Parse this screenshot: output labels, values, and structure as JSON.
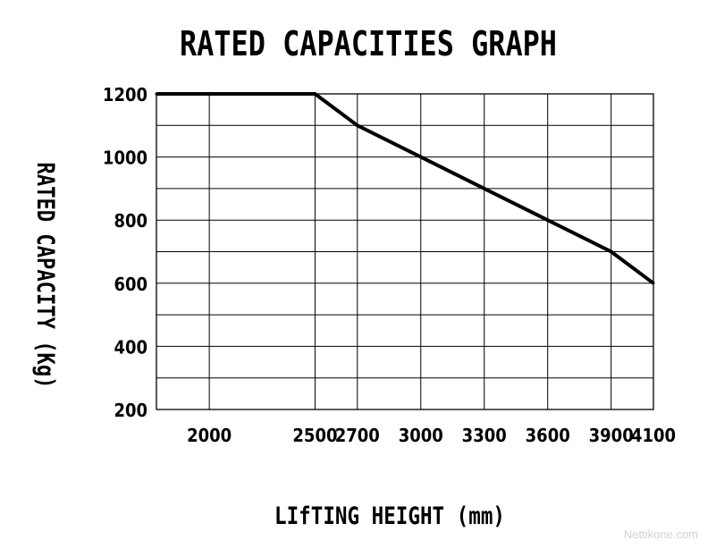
{
  "chart_data": {
    "type": "line",
    "title": "RATED CAPACITIES GRAPH",
    "xlabel": "LIfTING HEIGHT (mm)",
    "ylabel": "RATED CAPACITY (Kg)",
    "x_ticks": [
      2000,
      2500,
      2700,
      3000,
      3300,
      3600,
      3900,
      4100
    ],
    "y_ticks": [
      200,
      400,
      600,
      800,
      1000,
      1200
    ],
    "xlim": [
      1750,
      4100
    ],
    "ylim": [
      200,
      1200
    ],
    "grid": true,
    "series": [
      {
        "x": [
          1750,
          2500,
          2700,
          3000,
          3300,
          3600,
          3900,
          4100
        ],
        "y": [
          1200,
          1200,
          1100,
          1000,
          900,
          800,
          700,
          600
        ]
      }
    ]
  },
  "watermark": "Nettikone.com"
}
